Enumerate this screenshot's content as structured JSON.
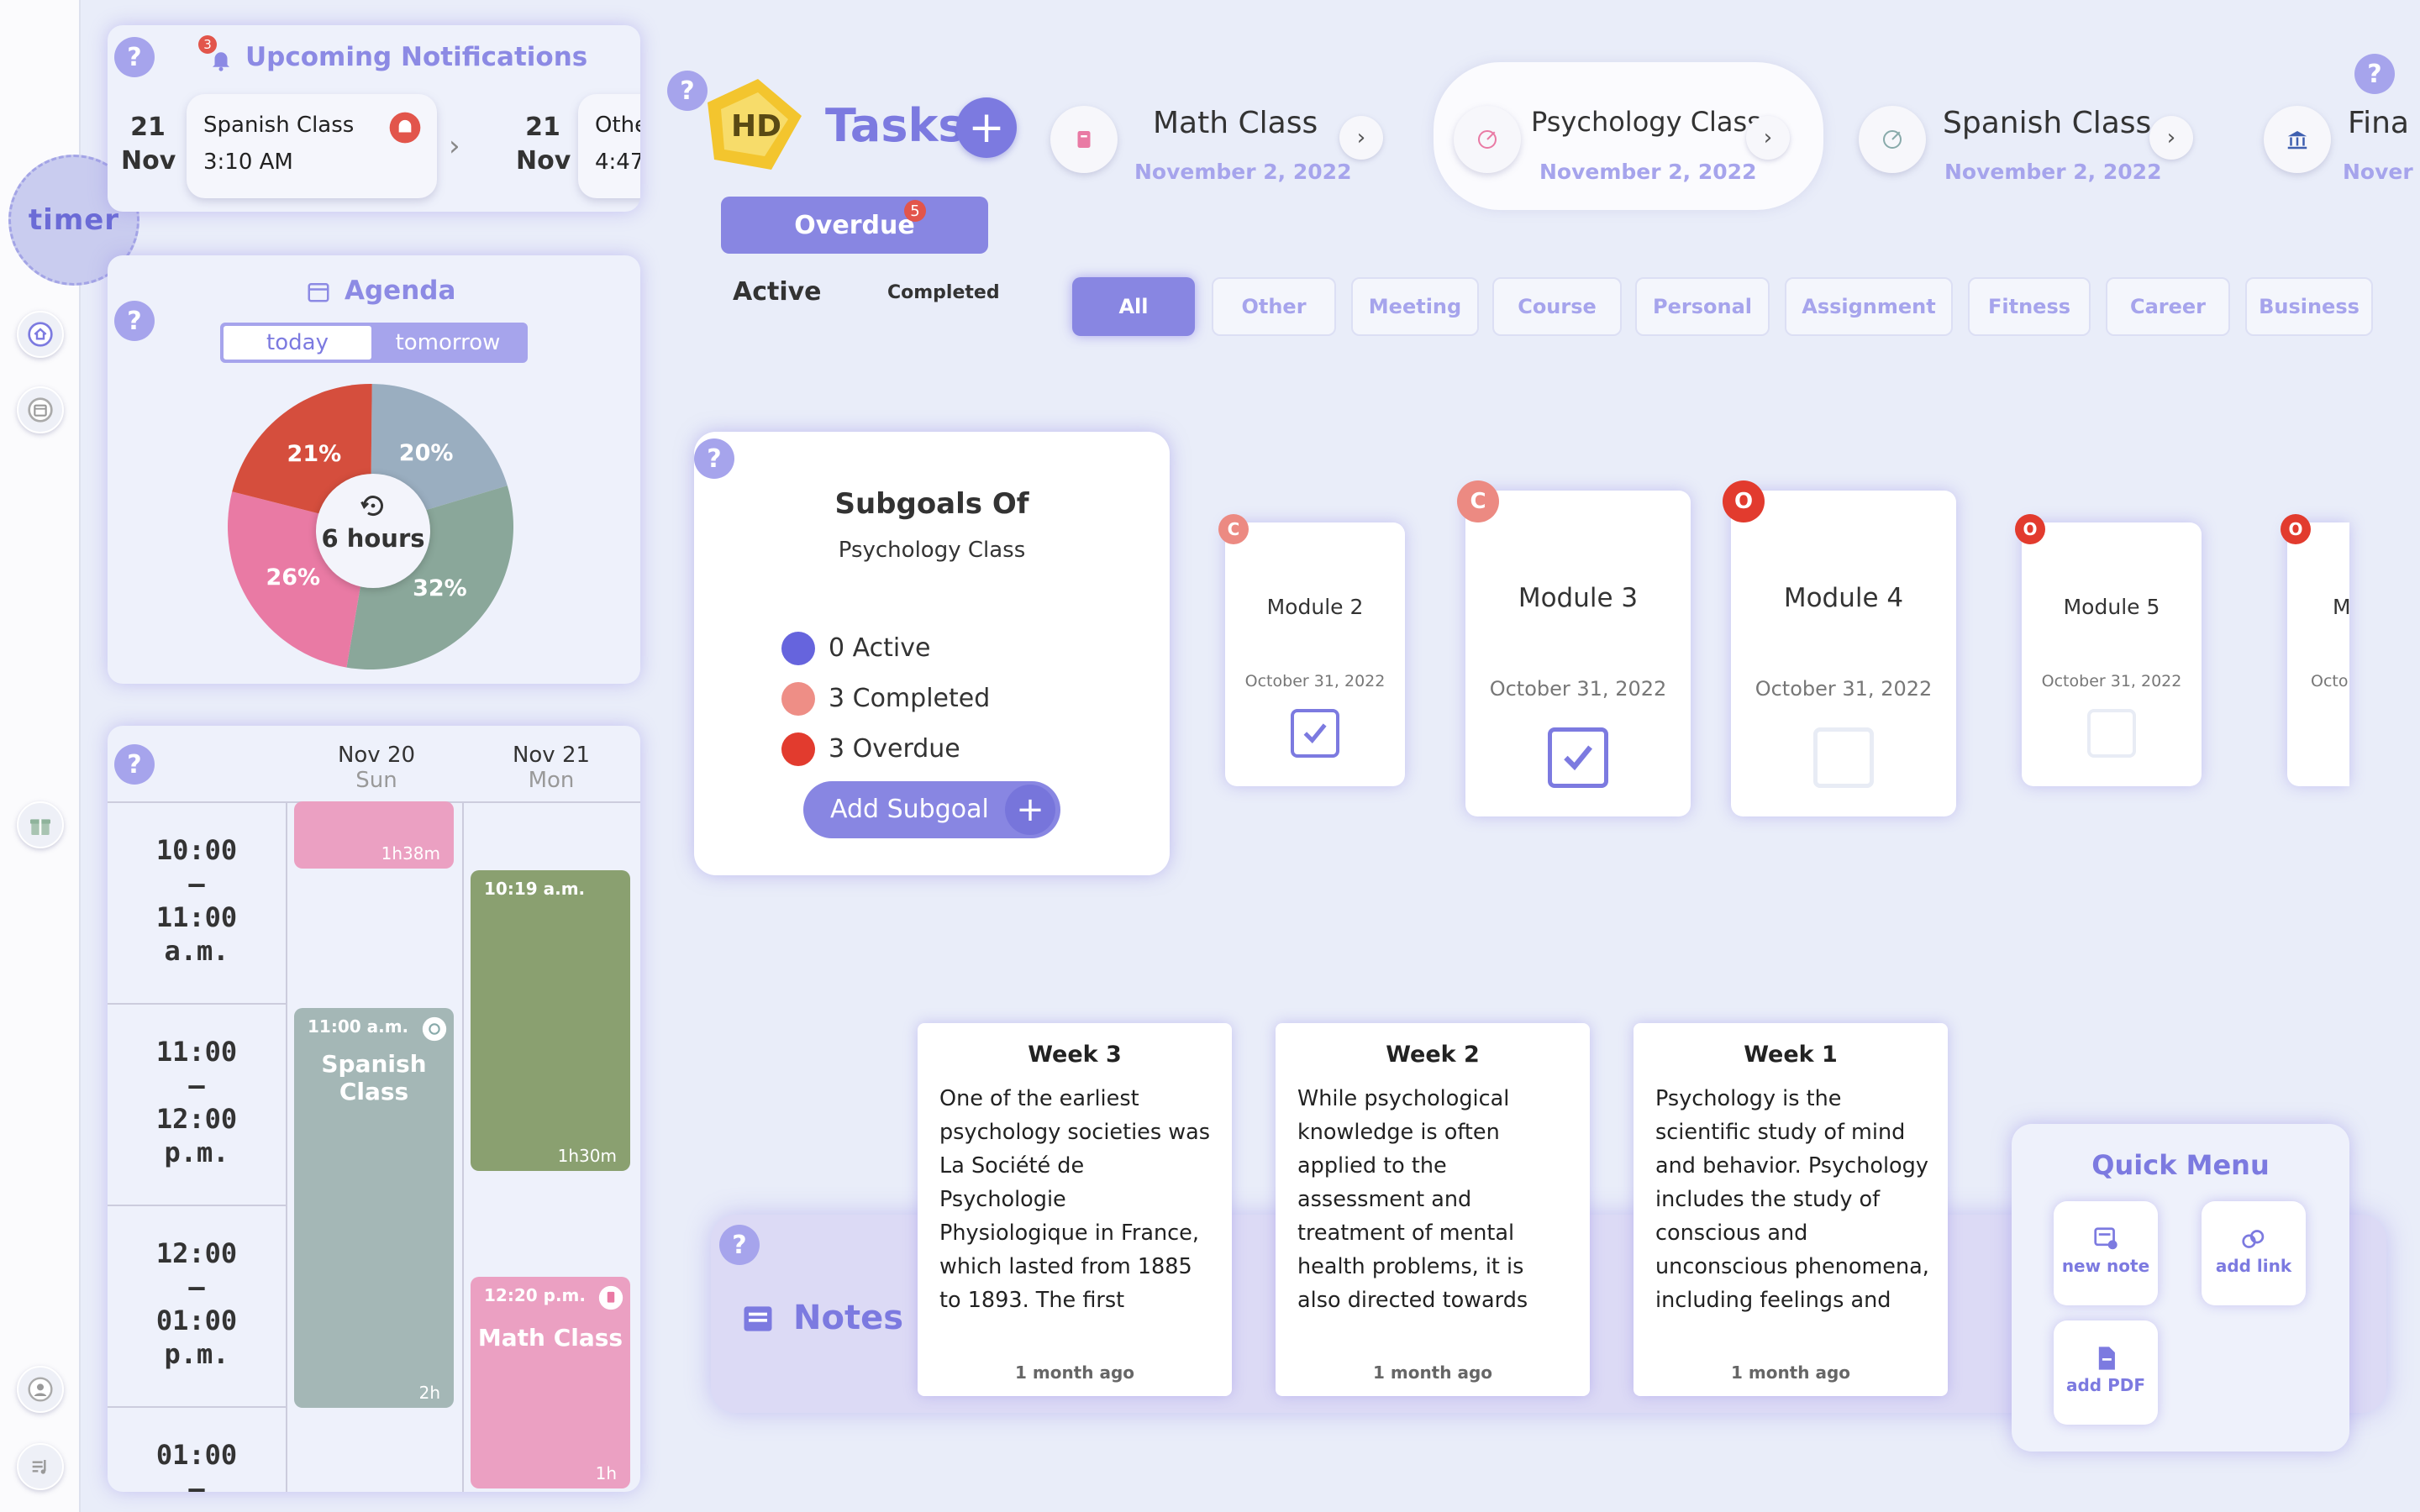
{
  "sidebar": {
    "timer_label": "timer",
    "icons": [
      "home-icon",
      "calendar-icon",
      "gift-icon",
      "profile-icon",
      "music-icon"
    ]
  },
  "notifications": {
    "title": "Upcoming Notifications",
    "count": "3",
    "items": [
      {
        "day": "21",
        "month": "Nov",
        "title": "Spanish Class",
        "time": "3:10 AM"
      },
      {
        "day": "21",
        "month": "Nov",
        "title": "Othe",
        "time": "4:47"
      }
    ]
  },
  "agenda": {
    "title": "Agenda",
    "tabs": {
      "today": "today",
      "tomorrow": "tomorrow"
    },
    "center_label": "6 hours",
    "slices": [
      {
        "label": "20%",
        "value": 20,
        "color": "#9aaec0"
      },
      {
        "label": "32%",
        "value": 32,
        "color": "#8aa79a"
      },
      {
        "label": "26%",
        "value": 26,
        "color": "#e97aa4"
      },
      {
        "label": "21%",
        "value": 21,
        "color": "#d54e3d"
      }
    ]
  },
  "calendar": {
    "days": [
      {
        "date": "Nov 20",
        "weekday": "Sun"
      },
      {
        "date": "Nov 21",
        "weekday": "Mon"
      }
    ],
    "times": [
      {
        "start": "10:00",
        "sep": "–",
        "end": "11:00",
        "period": "a.m."
      },
      {
        "start": "11:00",
        "sep": "–",
        "end": "12:00",
        "period": "p.m."
      },
      {
        "start": "12:00",
        "sep": "–",
        "end": "01:00",
        "period": "p.m."
      },
      {
        "start": "01:00",
        "sep": "–",
        "end": "",
        "period": ""
      }
    ],
    "events": {
      "pink_top": {
        "duration": "1h38m"
      },
      "spanish": {
        "time": "11:00 a.m.",
        "name": "Spanish Class",
        "duration": "2h"
      },
      "green": {
        "time": "10:19 a.m.",
        "duration": "1h30m"
      },
      "math": {
        "time": "12:20 p.m.",
        "name": "Math Class",
        "duration": "1h"
      }
    }
  },
  "tasks": {
    "title": "Tasks",
    "overdue_label": "Overdue",
    "overdue_count": "5",
    "tab_active": "Active",
    "tab_completed": "Completed"
  },
  "classes": [
    {
      "name": "Math Class",
      "date": "November 2, 2022"
    },
    {
      "name": "Psychology Class",
      "date": "November 2, 2022"
    },
    {
      "name": "Spanish Class",
      "date": "November 2, 2022"
    },
    {
      "name": "Fina",
      "date": "Nover"
    }
  ],
  "filters": [
    "All",
    "Other",
    "Meeting",
    "Course",
    "Personal",
    "Assignment",
    "Fitness",
    "Career",
    "Business"
  ],
  "subgoals": {
    "title": "Subgoals Of",
    "subtitle": "Psychology Class",
    "stats": [
      {
        "label": "0 Active",
        "color": "#6664dd"
      },
      {
        "label": "3 Completed",
        "color": "#ee8e86"
      },
      {
        "label": "3 Overdue",
        "color": "#e23b2e"
      }
    ],
    "add_label": "Add Subgoal"
  },
  "modules": [
    {
      "name": "Module 2",
      "date": "October 31, 2022",
      "badge": "C",
      "checked": true
    },
    {
      "name": "Module 3",
      "date": "October 31, 2022",
      "badge": "C",
      "checked": true
    },
    {
      "name": "Module 4",
      "date": "October 31, 2022",
      "badge": "O",
      "checked": false
    },
    {
      "name": "Module 5",
      "date": "October 31, 2022",
      "badge": "O",
      "checked": false
    },
    {
      "name": "M",
      "date": "Octob",
      "badge": "O",
      "checked": false
    }
  ],
  "notes": {
    "title": "Notes",
    "cards": [
      {
        "title": "Week 3",
        "body": "One of the earliest psychology societies was La Société de Psychologie Physiologique in France, which lasted from 1885 to 1893. The first meeting of the International Congress of Psychology…",
        "ago": "1 month ago"
      },
      {
        "title": "Week 2",
        "body": "While psychological knowledge is often applied to the assessment and treatment of mental health problems, it is also directed towards understanding and solving problems in seve…",
        "ago": "1 month ago"
      },
      {
        "title": "Week 1",
        "body": "Psychology is the scientific study of mind and behavior. Psychology includes the study of conscious and unconscious phenomena, including feelings and thoughts. It is an acade…",
        "ago": "1 month ago"
      }
    ]
  },
  "quick_menu": {
    "title": "Quick Menu",
    "new_note": "new note",
    "add_link": "add link",
    "add_pdf": "add PDF"
  },
  "help_label": "?"
}
